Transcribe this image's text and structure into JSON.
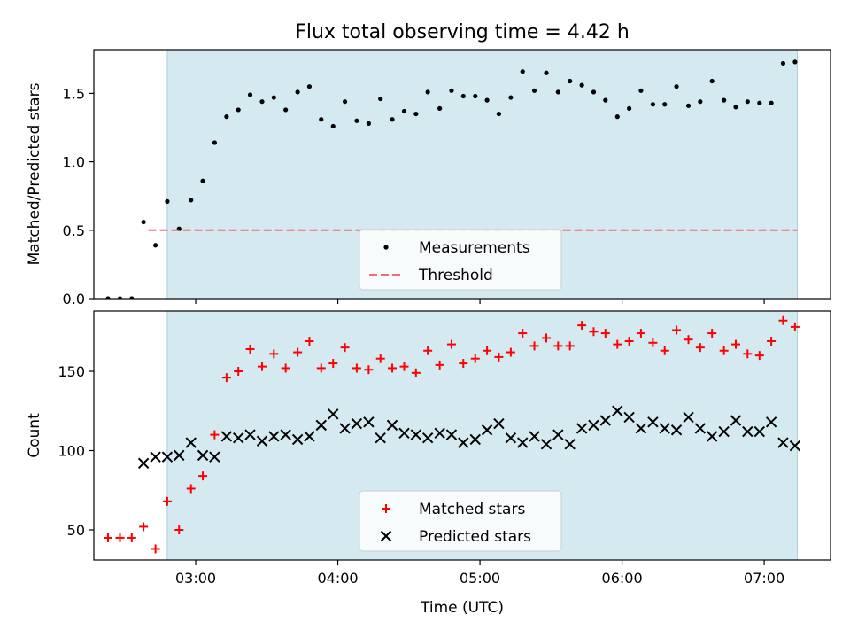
{
  "chart_data": {
    "title": "Flux total observing time = 4.42 h",
    "xlabel": "Time (UTC)",
    "x_unit": "hours UTC",
    "xlim": [
      2.2833,
      7.4667
    ],
    "x_ticks": [
      {
        "label": "03:00",
        "value": 3
      },
      {
        "label": "04:00",
        "value": 4
      },
      {
        "label": "05:00",
        "value": 5
      },
      {
        "label": "06:00",
        "value": 6
      },
      {
        "label": "07:00",
        "value": 7
      }
    ],
    "observing_span": [
      2.8,
      7.233
    ],
    "observing_span_color": "#d4eaf0",
    "panels": [
      {
        "type": "scatter",
        "ylabel": "Matched/Predicted stars",
        "ylim": [
          0,
          1.82
        ],
        "y_ticks": [
          "0.0",
          "0.5",
          "1.0",
          "1.5"
        ],
        "legend_position": "lower-center",
        "series": [
          {
            "name": "Measurements",
            "marker": "dot",
            "color": "#000000",
            "x": [
              2.383,
              2.467,
              2.55,
              2.633,
              2.717,
              2.8,
              2.883,
              2.967,
              3.05,
              3.133,
              3.217,
              3.3,
              3.383,
              3.467,
              3.55,
              3.633,
              3.717,
              3.8,
              3.883,
              3.967,
              4.05,
              4.133,
              4.217,
              4.3,
              4.383,
              4.467,
              4.55,
              4.633,
              4.717,
              4.8,
              4.883,
              4.967,
              5.05,
              5.133,
              5.217,
              5.3,
              5.383,
              5.467,
              5.55,
              5.633,
              5.717,
              5.8,
              5.883,
              5.967,
              6.05,
              6.133,
              6.217,
              6.3,
              6.383,
              6.467,
              6.55,
              6.633,
              6.717,
              6.8,
              6.883,
              6.967,
              7.05,
              7.133,
              7.217
            ],
            "y": [
              0,
              0,
              0,
              0.56,
              0.39,
              0.71,
              0.51,
              0.72,
              0.86,
              1.14,
              1.33,
              1.38,
              1.49,
              1.44,
              1.47,
              1.38,
              1.51,
              1.55,
              1.31,
              1.26,
              1.44,
              1.3,
              1.28,
              1.46,
              1.31,
              1.37,
              1.35,
              1.51,
              1.39,
              1.52,
              1.48,
              1.48,
              1.45,
              1.35,
              1.47,
              1.66,
              1.52,
              1.65,
              1.51,
              1.59,
              1.56,
              1.51,
              1.45,
              1.33,
              1.39,
              1.52,
              1.42,
              1.42,
              1.55,
              1.41,
              1.44,
              1.59,
              1.45,
              1.4,
              1.44,
              1.43,
              1.43,
              1.72,
              1.73
            ]
          },
          {
            "name": "Threshold",
            "type": "line",
            "style": "dashed",
            "color": "#f26d6d",
            "x": [
              2.667,
              7.233
            ],
            "y": [
              0.5,
              0.5
            ]
          }
        ]
      },
      {
        "type": "scatter",
        "ylabel": "Count",
        "ylim": [
          31,
          188
        ],
        "y_ticks": [
          "50",
          "100",
          "150"
        ],
        "legend_position": "lower-center",
        "series": [
          {
            "name": "Matched stars",
            "marker": "plus",
            "color": "#ff0000",
            "x": [
              2.383,
              2.467,
              2.55,
              2.633,
              2.717,
              2.8,
              2.883,
              2.967,
              3.05,
              3.133,
              3.217,
              3.3,
              3.383,
              3.467,
              3.55,
              3.633,
              3.717,
              3.8,
              3.883,
              3.967,
              4.05,
              4.133,
              4.217,
              4.3,
              4.383,
              4.467,
              4.55,
              4.633,
              4.717,
              4.8,
              4.883,
              4.967,
              5.05,
              5.133,
              5.217,
              5.3,
              5.383,
              5.467,
              5.55,
              5.633,
              5.717,
              5.8,
              5.883,
              5.967,
              6.05,
              6.133,
              6.217,
              6.3,
              6.383,
              6.467,
              6.55,
              6.633,
              6.717,
              6.8,
              6.883,
              6.967,
              7.05,
              7.133,
              7.217
            ],
            "y": [
              45,
              45,
              45,
              52,
              38,
              68,
              50,
              76,
              84,
              110,
              146,
              150,
              164,
              153,
              161,
              152,
              162,
              169,
              152,
              155,
              165,
              152,
              151,
              158,
              152,
              153,
              149,
              163,
              154,
              167,
              155,
              158,
              163,
              159,
              162,
              174,
              166,
              171,
              166,
              166,
              179,
              175,
              174,
              167,
              169,
              174,
              168,
              163,
              176,
              170,
              165,
              174,
              163,
              167,
              161,
              160,
              169,
              182,
              178
            ]
          },
          {
            "name": "Predicted stars",
            "marker": "x",
            "color": "#000000",
            "x": [
              2.633,
              2.717,
              2.8,
              2.883,
              2.967,
              3.05,
              3.133,
              3.217,
              3.3,
              3.383,
              3.467,
              3.55,
              3.633,
              3.717,
              3.8,
              3.883,
              3.967,
              4.05,
              4.133,
              4.217,
              4.3,
              4.383,
              4.467,
              4.55,
              4.633,
              4.717,
              4.8,
              4.883,
              4.967,
              5.05,
              5.133,
              5.217,
              5.3,
              5.383,
              5.467,
              5.55,
              5.633,
              5.717,
              5.8,
              5.883,
              5.967,
              6.05,
              6.133,
              6.217,
              6.3,
              6.383,
              6.467,
              6.55,
              6.633,
              6.717,
              6.8,
              6.883,
              6.967,
              7.05,
              7.133,
              7.217
            ],
            "y": [
              92,
              96,
              96,
              97,
              105,
              97,
              96,
              109,
              108,
              110,
              106,
              109,
              110,
              107,
              109,
              116,
              123,
              114,
              117,
              118,
              108,
              116,
              111,
              110,
              108,
              111,
              110,
              105,
              107,
              113,
              117,
              108,
              105,
              109,
              104,
              110,
              104,
              114,
              116,
              119,
              125,
              121,
              114,
              118,
              114,
              113,
              121,
              114,
              109,
              112,
              119,
              112,
              112,
              118,
              105,
              103
            ]
          }
        ]
      }
    ]
  }
}
